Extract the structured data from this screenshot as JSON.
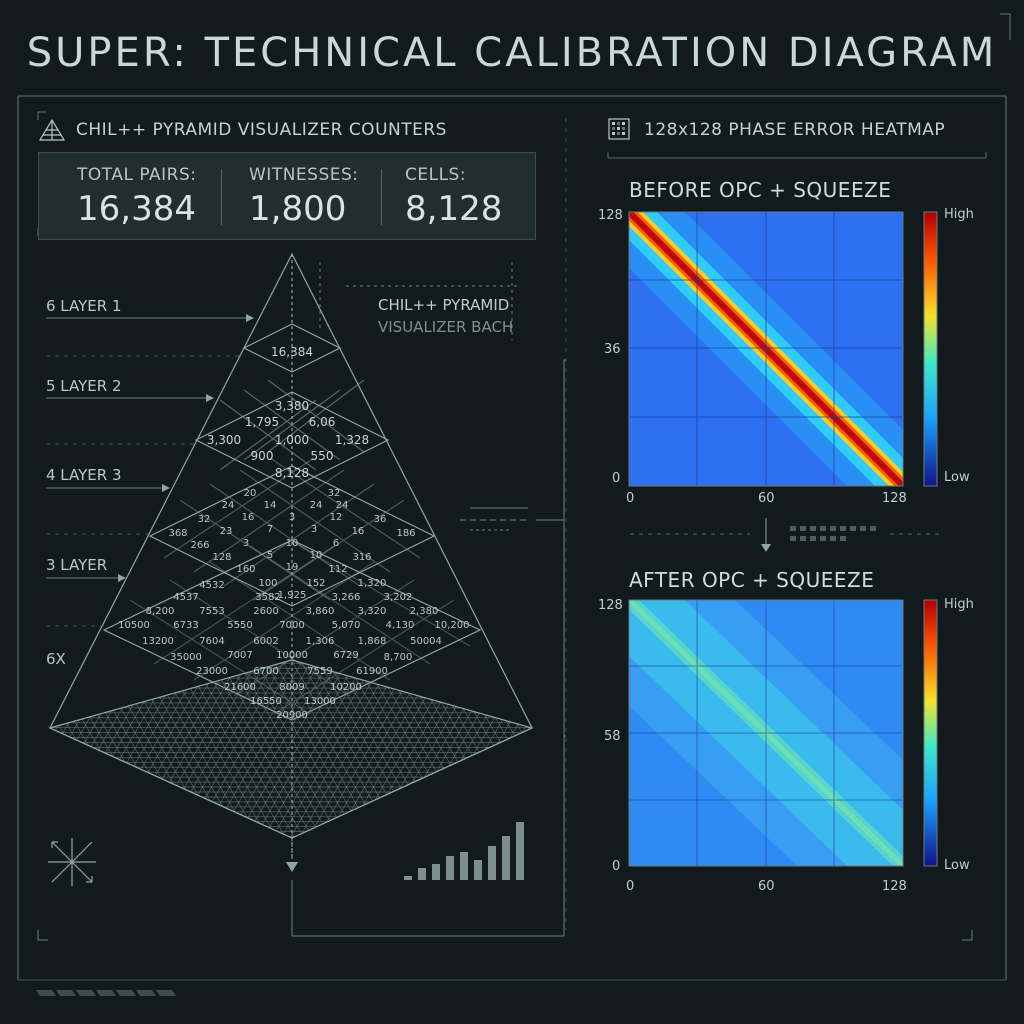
{
  "title": "SUPER: TECHNICAL CALIBRATION DIAGRAM",
  "left_panel": {
    "heading": "CHIL++ PYRAMID VISUALIZER COUNTERS",
    "counters": [
      {
        "label": "TOTAL PAIRS:",
        "value": "16,384"
      },
      {
        "label": "WITNESSES:",
        "value": "1,800"
      },
      {
        "label": "CELLS:",
        "value": "8,128"
      }
    ],
    "layer_labels": [
      "6 LAYER 1",
      "5 LAYER 2",
      "4 LAYER 3",
      "3 LAYER",
      "6X"
    ],
    "overlay_line1": "CHIL++ PYRAMID",
    "overlay_line2": "VISUALIZER BACH",
    "apex_value": "16,384",
    "tier2_values": [
      "3,380",
      "1,795",
      "6,06",
      "3,300",
      "1,000",
      "1,328",
      "900",
      "550",
      "8,128"
    ],
    "tier3_values": [
      "20",
      "32",
      "24",
      "14",
      "24",
      "24",
      "32",
      "16",
      "3",
      "12",
      "36",
      "368",
      "23",
      "7",
      "3",
      "16",
      "186",
      "266",
      "3",
      "10",
      "6",
      "128",
      "5",
      "10",
      "316",
      "160",
      "19",
      "112",
      "100"
    ],
    "tier4_values": [
      "4532",
      "3582",
      "1,925",
      "3,266",
      "3,202",
      "1,320",
      "4537",
      "152",
      "8,200",
      "7553",
      "2600",
      "3,860",
      "3,320",
      "2,380",
      "10500",
      "6733",
      "5550",
      "7000",
      "5,070",
      "4,130",
      "10,200",
      "13200",
      "7604",
      "6002",
      "1,306",
      "1,868",
      "50004",
      "35000",
      "7007",
      "10000",
      "6729",
      "8,700"
    ],
    "tier5_values": [
      "23000",
      "6700",
      "7559",
      "61900",
      "21600",
      "8009",
      "10200",
      "16550",
      "13000",
      "20900"
    ]
  },
  "right_panel": {
    "heading": "128x128 PHASE ERROR HEATMAP",
    "before": {
      "title": "BEFORE OPC + SQUEEZE",
      "y_ticks": [
        "128",
        "36",
        "0"
      ],
      "x_ticks": [
        "0",
        "60",
        "128"
      ],
      "colorbar_high": "High",
      "colorbar_low": "Low"
    },
    "after": {
      "title": "AFTER OPC + SQUEEZE",
      "y_ticks": [
        "128",
        "58",
        "0"
      ],
      "x_ticks": [
        "0",
        "60",
        "128"
      ],
      "colorbar_high": "High",
      "colorbar_low": "Low"
    }
  },
  "colors": {
    "background": "#131a1d",
    "line": "#8fa6a4",
    "heat_low": "#1e3fd8",
    "heat_mid": "#22c8ff",
    "heat_high": "#b40000"
  }
}
